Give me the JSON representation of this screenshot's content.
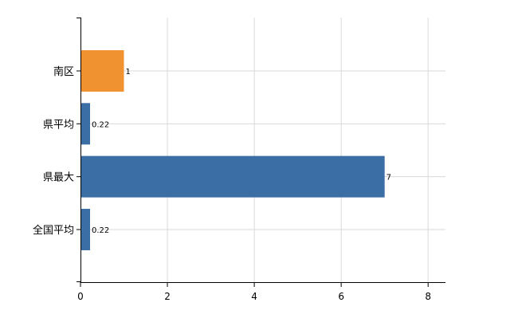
{
  "chart_data": {
    "type": "bar",
    "orientation": "horizontal",
    "categories": [
      "南区",
      "県平均",
      "県最大",
      "全国平均"
    ],
    "values": [
      1,
      0.22,
      7,
      0.22
    ],
    "data_labels": [
      "1",
      "0.22",
      "7",
      "0.22"
    ],
    "bar_colors": [
      "#f0922f",
      "#3a6ea5",
      "#3a6ea5",
      "#3a6ea5"
    ],
    "xlim": [
      0,
      8.4
    ],
    "xticks": [
      "0",
      "2",
      "4",
      "6",
      "8"
    ],
    "grid": true,
    "legend": "none"
  }
}
